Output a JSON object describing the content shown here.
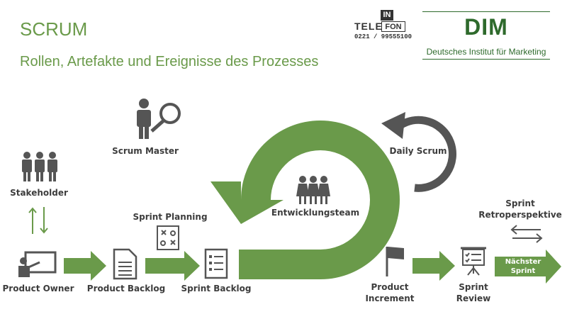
{
  "header": {
    "title": "SCRUM",
    "subtitle": "Rollen, Artefakte und Ereignisse des Prozesses"
  },
  "logos": {
    "info_in": "IN",
    "info_fon": "FON",
    "info_tele": "TELE",
    "info_phone": "0221 / 99555100",
    "dim_main": "DIM",
    "dim_sub": "Deutsches Institut für Marketing"
  },
  "labels": {
    "scrum_master": "Scrum Master",
    "stakeholder": "Stakeholder",
    "sprint_planning": "Sprint Planning",
    "daily_scrum": "Daily Scrum",
    "entwicklungsteam": "Entwicklungsteam",
    "sprint_retro": "Sprint\nRetroperspektive",
    "product_owner": "Product Owner",
    "product_backlog": "Product Backlog",
    "sprint_backlog": "Sprint Backlog",
    "product_increment": "Product\nIncrement",
    "sprint_review": "Sprint\nReview",
    "naechster_sprint": "Nächster\nSprint"
  },
  "colors": {
    "green": "#6a9a4a",
    "dark_green": "#2e6a2c",
    "gray": "#555555",
    "text": "#3d3d3d"
  },
  "icons": [
    "person-magnifier-icon",
    "group-icon",
    "document-icon",
    "list-icon",
    "strategy-board-icon",
    "presentation-person-icon",
    "flag-icon",
    "presentation-board-icon",
    "team-icon",
    "bidirectional-arrow-icon",
    "cycle-arrow-icon"
  ]
}
